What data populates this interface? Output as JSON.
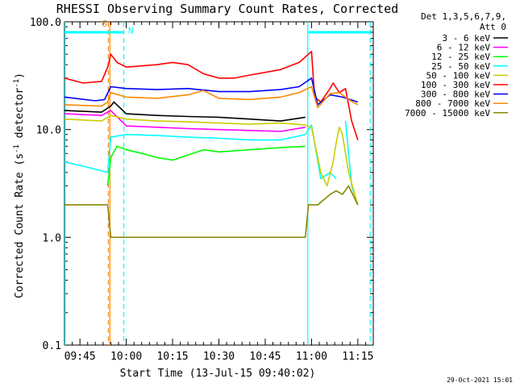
{
  "chart_data": {
    "type": "line",
    "title": "RHESSI Observing Summary Count Rates, Corrected",
    "xlabel": "Start Time (13-Jul-15 09:40:02)",
    "ylabel_main": "Corrected Count Rate (s",
    "ylabel_sup1": "-1",
    "ylabel_mid": " detector",
    "ylabel_sup2": "-1",
    "ylabel_end": ")",
    "y_scale": "log",
    "ylim": [
      0.1,
      100.0
    ],
    "y_ticks": [
      {
        "value": 0.1,
        "label": "0.1"
      },
      {
        "value": 1.0,
        "label": "1.0"
      },
      {
        "value": 10.0,
        "label": "10.0"
      },
      {
        "value": 100.0,
        "label": "100.0"
      }
    ],
    "x_unit": "minutes since 09:40:02",
    "xlim": [
      0,
      100
    ],
    "x_ticks": [
      {
        "value": 5,
        "label": "09:45"
      },
      {
        "value": 20,
        "label": "10:00"
      },
      {
        "value": 35,
        "label": "10:15"
      },
      {
        "value": 50,
        "label": "10:30"
      },
      {
        "value": 65,
        "label": "10:45"
      },
      {
        "value": 80,
        "label": "11:00"
      },
      {
        "value": 95,
        "label": "11:15"
      }
    ],
    "legend_header": [
      "Det 1,3,5,6,7,9,",
      "Att 0"
    ],
    "legend_position": "right",
    "series": [
      {
        "name": "3 - 6 keV",
        "color": "#000000",
        "points": [
          [
            0,
            15.0
          ],
          [
            12,
            14.5
          ],
          [
            15,
            16.5
          ],
          [
            16,
            18
          ],
          [
            20,
            14.0
          ],
          [
            30,
            13.5
          ],
          [
            40,
            13.2
          ],
          [
            50,
            13.0
          ],
          [
            60,
            12.5
          ],
          [
            70,
            12.0
          ],
          [
            78,
            13.0
          ],
          [
            79,
            0
          ],
          [
            80,
            null
          ],
          [
            82,
            null
          ]
        ]
      },
      {
        "name": "6 - 12 keV",
        "color": "#ff00ff",
        "points": [
          [
            0,
            14.0
          ],
          [
            12,
            13.5
          ],
          [
            15,
            15
          ],
          [
            20,
            10.8
          ],
          [
            30,
            10.5
          ],
          [
            40,
            10.2
          ],
          [
            50,
            10.0
          ],
          [
            60,
            9.8
          ],
          [
            70,
            9.6
          ],
          [
            78,
            10.5
          ]
        ]
      },
      {
        "name": "12 - 25 keV",
        "color": "#00ff00",
        "points": [
          [
            14,
            3.0
          ],
          [
            15,
            5.5
          ],
          [
            17,
            7.0
          ],
          [
            20,
            6.5
          ],
          [
            25,
            6.0
          ],
          [
            30,
            5.5
          ],
          [
            35,
            5.2
          ],
          [
            40,
            5.8
          ],
          [
            45,
            6.5
          ],
          [
            50,
            6.2
          ],
          [
            60,
            6.5
          ],
          [
            70,
            6.8
          ],
          [
            78,
            7.0
          ]
        ]
      },
      {
        "name": "25 - 50 keV",
        "color": "#00ffff",
        "points": [
          [
            0,
            5.0
          ],
          [
            7,
            4.5
          ],
          [
            14,
            4.0
          ],
          [
            15,
            8.5
          ],
          [
            20,
            9.0
          ],
          [
            30,
            8.8
          ],
          [
            40,
            8.5
          ],
          [
            50,
            8.3
          ],
          [
            60,
            8.0
          ],
          [
            70,
            8.0
          ],
          [
            78,
            9.0
          ],
          [
            80,
            11.0
          ],
          [
            83,
            3.5
          ],
          [
            86,
            4.0
          ],
          [
            88,
            3.5
          ],
          [
            90,
            null
          ],
          [
            91,
            12.0
          ],
          [
            93,
            3.0
          ],
          [
            95,
            2.0
          ]
        ]
      },
      {
        "name": "50 - 100 keV",
        "color": "#cccc00",
        "points": [
          [
            0,
            12.5
          ],
          [
            12,
            12.0
          ],
          [
            15,
            13.5
          ],
          [
            20,
            12.5
          ],
          [
            30,
            12.0
          ],
          [
            40,
            11.8
          ],
          [
            50,
            11.5
          ],
          [
            60,
            11.2
          ],
          [
            70,
            11.5
          ],
          [
            78,
            11.0
          ],
          [
            80,
            10.5
          ],
          [
            83,
            4.0
          ],
          [
            85,
            3.0
          ],
          [
            87,
            5.0
          ],
          [
            88,
            7.5
          ],
          [
            89,
            10.5
          ],
          [
            90,
            9.0
          ],
          [
            92,
            4.0
          ],
          [
            94,
            2.5
          ],
          [
            95,
            2.0
          ]
        ]
      },
      {
        "name": "100 - 300 keV",
        "color": "#ff0000",
        "points": [
          [
            0,
            30.0
          ],
          [
            6,
            27.0
          ],
          [
            12,
            28.0
          ],
          [
            14,
            38.0
          ],
          [
            15,
            50.0
          ],
          [
            17,
            42.0
          ],
          [
            20,
            38.0
          ],
          [
            30,
            40.0
          ],
          [
            35,
            42.0
          ],
          [
            40,
            40.0
          ],
          [
            45,
            33.0
          ],
          [
            50,
            30.0
          ],
          [
            55,
            30.0
          ],
          [
            60,
            32.0
          ],
          [
            70,
            36.0
          ],
          [
            76,
            42.0
          ],
          [
            79,
            50.0
          ],
          [
            80,
            53.0
          ],
          [
            81,
            20.0
          ],
          [
            83,
            18.0
          ],
          [
            86,
            24.0
          ],
          [
            87,
            27.0
          ],
          [
            89,
            22.0
          ],
          [
            91,
            24.0
          ],
          [
            93,
            12.0
          ],
          [
            95,
            8.0
          ]
        ]
      },
      {
        "name": "300 - 800 keV",
        "color": "#0000ff",
        "points": [
          [
            0,
            20.0
          ],
          [
            10,
            18.5
          ],
          [
            13,
            19.0
          ],
          [
            15,
            25.0
          ],
          [
            20,
            24.0
          ],
          [
            30,
            23.5
          ],
          [
            40,
            24.0
          ],
          [
            50,
            22.5
          ],
          [
            60,
            22.5
          ],
          [
            70,
            23.5
          ],
          [
            76,
            25.0
          ],
          [
            80,
            30.0
          ],
          [
            82,
            17.0
          ],
          [
            86,
            21.0
          ],
          [
            90,
            20.0
          ],
          [
            95,
            18.0
          ]
        ]
      },
      {
        "name": "800 - 7000 keV",
        "color": "#ff8800",
        "points": [
          [
            0,
            17.0
          ],
          [
            12,
            16.5
          ],
          [
            14,
            18.0
          ],
          [
            15,
            22.0
          ],
          [
            20,
            20.0
          ],
          [
            30,
            19.5
          ],
          [
            40,
            21.0
          ],
          [
            45,
            23.0
          ],
          [
            50,
            19.5
          ],
          [
            60,
            19.0
          ],
          [
            70,
            20.0
          ],
          [
            76,
            22.0
          ],
          [
            80,
            25.0
          ],
          [
            82,
            16.0
          ],
          [
            86,
            21.5
          ],
          [
            89,
            22.0
          ],
          [
            92,
            19.0
          ],
          [
            95,
            17.0
          ]
        ]
      },
      {
        "name": "7000 - 15000 keV",
        "color": "#888800",
        "points": [
          [
            0,
            2.0
          ],
          [
            14,
            2.0
          ],
          [
            15,
            1.0
          ],
          [
            20,
            1.0
          ],
          [
            40,
            1.0
          ],
          [
            60,
            1.0
          ],
          [
            78,
            1.0
          ],
          [
            79,
            2.0
          ],
          [
            82,
            2.0
          ],
          [
            86,
            2.5
          ],
          [
            88,
            2.7
          ],
          [
            90,
            2.5
          ],
          [
            92,
            3.0
          ],
          [
            95,
            2.0
          ]
        ]
      }
    ],
    "vertical_markers": [
      {
        "x": 14.2,
        "color": "#ff8800",
        "style": "dashed"
      },
      {
        "x": 14.7,
        "color": "#ff8800",
        "style": "solid"
      },
      {
        "x": 19.2,
        "color": "#00ffff",
        "style": "dashed"
      },
      {
        "x": 78.8,
        "color": "#00ffff",
        "style": "solid"
      },
      {
        "x": 99.0,
        "color": "#00ffff",
        "style": "dashed"
      },
      {
        "x": 0.2,
        "color": "#00ffff",
        "style": "solid"
      }
    ],
    "segments": [
      {
        "x_from": 0,
        "x_to": 19,
        "y": 80,
        "color": "#00ffff"
      },
      {
        "x_from": 79,
        "x_to": 99,
        "y": 80,
        "color": "#00ffff"
      }
    ],
    "annotations": [
      {
        "text": "S",
        "x": 13,
        "y": 90,
        "color": "#ff8800"
      },
      {
        "text": "N",
        "x": 21.5,
        "y": 78,
        "color": "#00ffff"
      }
    ],
    "grid": false
  },
  "footer": {
    "timestamp": "29-Oct-2021 15:01"
  }
}
